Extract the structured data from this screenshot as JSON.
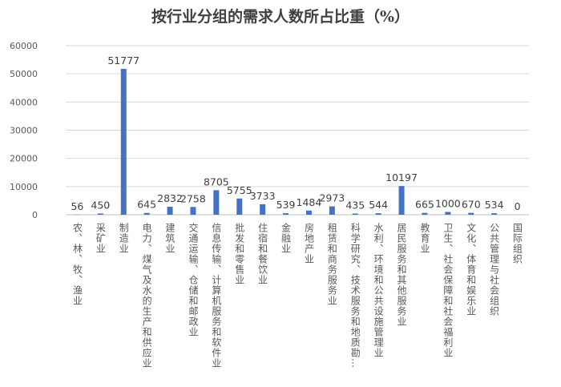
{
  "chart_data": {
    "type": "bar",
    "title": "按行业分组的需求人数所占比重（%）",
    "xlabel": "",
    "ylabel": "",
    "ylim": [
      0,
      60000
    ],
    "yticks": [
      0,
      10000,
      20000,
      30000,
      40000,
      50000,
      60000
    ],
    "grid": true,
    "color": "#4472C4",
    "categories": [
      "农、林、牧、渔业",
      "采矿业",
      "制造业",
      "电力、煤气及水的生产和供应业",
      "建筑业",
      "交通运输、仓储和邮政业",
      "信息传输、计算机服务和软件业",
      "批发和零售业",
      "住宿和餐饮业",
      "金融业",
      "房地产业",
      "租赁和商务服务业",
      "科学研究、技术服务和地质勘…",
      "水利、环境和公共设施管理业",
      "居民服务和其他服务业",
      "教育业",
      "卫生、社会保障和社会福利业",
      "文化、体育和娱乐业",
      "公共管理与社会组织",
      "国际组织"
    ],
    "values": [
      56,
      450,
      51777,
      645,
      2832,
      2758,
      8705,
      5755,
      3733,
      539,
      1484,
      2973,
      435,
      544,
      10197,
      665,
      1000,
      670,
      534,
      0
    ]
  }
}
